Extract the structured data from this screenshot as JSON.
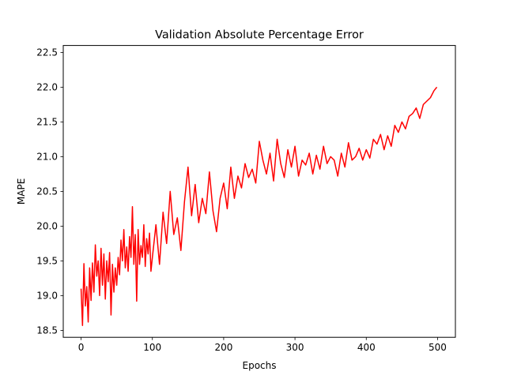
{
  "chart_data": {
    "type": "line",
    "title": "Validation Absolute Percentage Error",
    "xlabel": "Epochs",
    "ylabel": "MAPE",
    "xlim": [
      -25,
      525
    ],
    "ylim": [
      18.4,
      22.6
    ],
    "xticks": [
      0,
      100,
      200,
      300,
      400,
      500
    ],
    "yticks": [
      18.5,
      19.0,
      19.5,
      20.0,
      20.5,
      21.0,
      21.5,
      22.0,
      22.5
    ],
    "xtick_labels": [
      "0",
      "100",
      "200",
      "300",
      "400",
      "500"
    ],
    "ytick_labels": [
      "18.5",
      "19.0",
      "19.5",
      "20.0",
      "20.5",
      "21.0",
      "21.5",
      "22.0",
      "22.5"
    ],
    "grid": false,
    "legend": "none",
    "series": [
      {
        "color": "#ff0000",
        "x": [
          0,
          2,
          4,
          6,
          8,
          10,
          12,
          14,
          16,
          18,
          20,
          22,
          24,
          26,
          28,
          30,
          32,
          34,
          36,
          38,
          40,
          42,
          44,
          46,
          48,
          50,
          52,
          54,
          56,
          58,
          60,
          62,
          64,
          66,
          68,
          70,
          72,
          74,
          76,
          78,
          80,
          82,
          84,
          86,
          88,
          90,
          92,
          94,
          96,
          98,
          100,
          105,
          110,
          115,
          120,
          125,
          130,
          135,
          140,
          145,
          150,
          155,
          160,
          165,
          170,
          175,
          180,
          185,
          190,
          195,
          200,
          205,
          210,
          215,
          220,
          225,
          230,
          235,
          240,
          245,
          250,
          255,
          260,
          265,
          270,
          275,
          280,
          285,
          290,
          295,
          300,
          305,
          310,
          315,
          320,
          325,
          330,
          335,
          340,
          345,
          350,
          355,
          360,
          365,
          370,
          375,
          380,
          385,
          390,
          395,
          400,
          405,
          410,
          415,
          420,
          425,
          430,
          435,
          440,
          445,
          450,
          455,
          460,
          465,
          470,
          475,
          480,
          485,
          490,
          495,
          499
        ],
        "values": [
          19.1,
          18.57,
          19.46,
          18.85,
          19.13,
          18.62,
          19.4,
          18.93,
          19.47,
          19.05,
          19.73,
          19.28,
          19.5,
          19.0,
          19.68,
          19.15,
          19.6,
          18.95,
          19.5,
          19.2,
          19.62,
          18.72,
          19.45,
          19.05,
          19.4,
          19.15,
          19.55,
          19.3,
          19.8,
          19.5,
          19.95,
          19.4,
          19.7,
          19.35,
          19.85,
          19.55,
          20.28,
          19.45,
          19.88,
          18.92,
          19.95,
          19.45,
          19.72,
          19.55,
          20.02,
          19.42,
          19.82,
          19.6,
          19.9,
          19.35,
          19.55,
          20.02,
          19.45,
          20.2,
          19.75,
          20.5,
          19.88,
          20.12,
          19.65,
          20.35,
          20.85,
          20.15,
          20.6,
          20.05,
          20.4,
          20.18,
          20.78,
          20.22,
          19.92,
          20.4,
          20.62,
          20.25,
          20.85,
          20.4,
          20.72,
          20.55,
          20.9,
          20.7,
          20.82,
          20.62,
          21.22,
          20.95,
          20.75,
          21.05,
          20.65,
          21.25,
          20.9,
          20.7,
          21.1,
          20.85,
          21.15,
          20.72,
          20.95,
          20.88,
          21.05,
          20.75,
          21.02,
          20.82,
          21.15,
          20.9,
          21.0,
          20.95,
          20.72,
          21.05,
          20.85,
          21.2,
          20.95,
          21.0,
          21.12,
          20.95,
          21.1,
          20.98,
          21.25,
          21.18,
          21.32,
          21.1,
          21.3,
          21.15,
          21.45,
          21.35,
          21.5,
          21.4,
          21.58,
          21.62,
          21.7,
          21.55,
          21.75,
          21.8,
          21.85,
          21.95,
          22.0
        ]
      }
    ]
  }
}
